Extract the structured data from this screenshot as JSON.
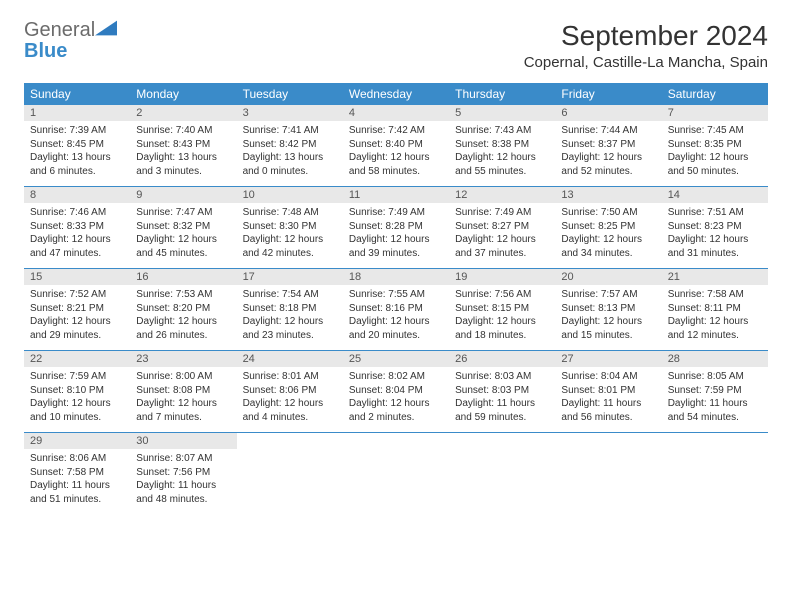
{
  "logo": {
    "text1": "General",
    "text2": "Blue",
    "shape_color": "#2f7bbf"
  },
  "header": {
    "title": "September 2024",
    "location": "Copernal, Castille-La Mancha, Spain"
  },
  "day_headers": [
    "Sunday",
    "Monday",
    "Tuesday",
    "Wednesday",
    "Thursday",
    "Friday",
    "Saturday"
  ],
  "colors": {
    "header_bg": "#3a8bc9",
    "header_fg": "#ffffff",
    "daynum_bg": "#e8e8e8",
    "border": "#3a8bc9"
  },
  "days": [
    {
      "n": "1",
      "sunrise": "7:39 AM",
      "sunset": "8:45 PM",
      "daylight": "13 hours and 6 minutes."
    },
    {
      "n": "2",
      "sunrise": "7:40 AM",
      "sunset": "8:43 PM",
      "daylight": "13 hours and 3 minutes."
    },
    {
      "n": "3",
      "sunrise": "7:41 AM",
      "sunset": "8:42 PM",
      "daylight": "13 hours and 0 minutes."
    },
    {
      "n": "4",
      "sunrise": "7:42 AM",
      "sunset": "8:40 PM",
      "daylight": "12 hours and 58 minutes."
    },
    {
      "n": "5",
      "sunrise": "7:43 AM",
      "sunset": "8:38 PM",
      "daylight": "12 hours and 55 minutes."
    },
    {
      "n": "6",
      "sunrise": "7:44 AM",
      "sunset": "8:37 PM",
      "daylight": "12 hours and 52 minutes."
    },
    {
      "n": "7",
      "sunrise": "7:45 AM",
      "sunset": "8:35 PM",
      "daylight": "12 hours and 50 minutes."
    },
    {
      "n": "8",
      "sunrise": "7:46 AM",
      "sunset": "8:33 PM",
      "daylight": "12 hours and 47 minutes."
    },
    {
      "n": "9",
      "sunrise": "7:47 AM",
      "sunset": "8:32 PM",
      "daylight": "12 hours and 45 minutes."
    },
    {
      "n": "10",
      "sunrise": "7:48 AM",
      "sunset": "8:30 PM",
      "daylight": "12 hours and 42 minutes."
    },
    {
      "n": "11",
      "sunrise": "7:49 AM",
      "sunset": "8:28 PM",
      "daylight": "12 hours and 39 minutes."
    },
    {
      "n": "12",
      "sunrise": "7:49 AM",
      "sunset": "8:27 PM",
      "daylight": "12 hours and 37 minutes."
    },
    {
      "n": "13",
      "sunrise": "7:50 AM",
      "sunset": "8:25 PM",
      "daylight": "12 hours and 34 minutes."
    },
    {
      "n": "14",
      "sunrise": "7:51 AM",
      "sunset": "8:23 PM",
      "daylight": "12 hours and 31 minutes."
    },
    {
      "n": "15",
      "sunrise": "7:52 AM",
      "sunset": "8:21 PM",
      "daylight": "12 hours and 29 minutes."
    },
    {
      "n": "16",
      "sunrise": "7:53 AM",
      "sunset": "8:20 PM",
      "daylight": "12 hours and 26 minutes."
    },
    {
      "n": "17",
      "sunrise": "7:54 AM",
      "sunset": "8:18 PM",
      "daylight": "12 hours and 23 minutes."
    },
    {
      "n": "18",
      "sunrise": "7:55 AM",
      "sunset": "8:16 PM",
      "daylight": "12 hours and 20 minutes."
    },
    {
      "n": "19",
      "sunrise": "7:56 AM",
      "sunset": "8:15 PM",
      "daylight": "12 hours and 18 minutes."
    },
    {
      "n": "20",
      "sunrise": "7:57 AM",
      "sunset": "8:13 PM",
      "daylight": "12 hours and 15 minutes."
    },
    {
      "n": "21",
      "sunrise": "7:58 AM",
      "sunset": "8:11 PM",
      "daylight": "12 hours and 12 minutes."
    },
    {
      "n": "22",
      "sunrise": "7:59 AM",
      "sunset": "8:10 PM",
      "daylight": "12 hours and 10 minutes."
    },
    {
      "n": "23",
      "sunrise": "8:00 AM",
      "sunset": "8:08 PM",
      "daylight": "12 hours and 7 minutes."
    },
    {
      "n": "24",
      "sunrise": "8:01 AM",
      "sunset": "8:06 PM",
      "daylight": "12 hours and 4 minutes."
    },
    {
      "n": "25",
      "sunrise": "8:02 AM",
      "sunset": "8:04 PM",
      "daylight": "12 hours and 2 minutes."
    },
    {
      "n": "26",
      "sunrise": "8:03 AM",
      "sunset": "8:03 PM",
      "daylight": "11 hours and 59 minutes."
    },
    {
      "n": "27",
      "sunrise": "8:04 AM",
      "sunset": "8:01 PM",
      "daylight": "11 hours and 56 minutes."
    },
    {
      "n": "28",
      "sunrise": "8:05 AM",
      "sunset": "7:59 PM",
      "daylight": "11 hours and 54 minutes."
    },
    {
      "n": "29",
      "sunrise": "8:06 AM",
      "sunset": "7:58 PM",
      "daylight": "11 hours and 51 minutes."
    },
    {
      "n": "30",
      "sunrise": "8:07 AM",
      "sunset": "7:56 PM",
      "daylight": "11 hours and 48 minutes."
    }
  ],
  "labels": {
    "sunrise": "Sunrise: ",
    "sunset": "Sunset: ",
    "daylight": "Daylight: "
  }
}
